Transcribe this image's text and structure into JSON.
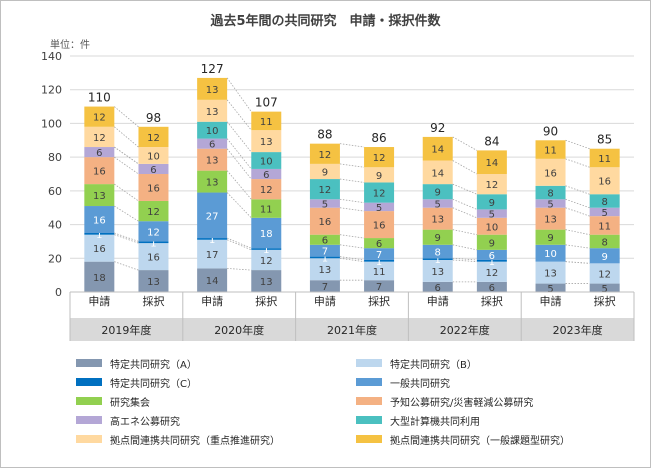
{
  "title": "過去5年間の共同研究　申請・採択件数",
  "unit": "単位：件",
  "colors": [
    "#8497b0",
    "#bdd7ee",
    "#0070c0",
    "#5b9bd5",
    "#92d050",
    "#f4b183",
    "#b4a7d6",
    "#4bc0c0",
    "#ffd9a0",
    "#f5c242"
  ],
  "chart_data": {
    "type": "bar",
    "stacked": true,
    "ylim": [
      0,
      140
    ],
    "yticks": [
      0,
      20,
      40,
      60,
      80,
      100,
      120,
      140
    ],
    "grid": true,
    "legend_position": "bottom",
    "years": [
      "2019年度",
      "2020年度",
      "2021年度",
      "2022年度",
      "2023年度"
    ],
    "subcategories": [
      "申請",
      "採択"
    ],
    "series": [
      {
        "name": "特定共同研究（A）",
        "values": [
          18,
          13,
          14,
          13,
          7,
          7,
          6,
          6,
          5,
          5
        ]
      },
      {
        "name": "特定共同研究（B）",
        "values": [
          16,
          16,
          17,
          12,
          13,
          11,
          13,
          12,
          13,
          12
        ]
      },
      {
        "name": "特定共同研究（C）",
        "values": [
          1,
          1,
          1,
          1,
          1,
          1,
          1,
          1,
          0,
          0
        ]
      },
      {
        "name": "一般共同研究",
        "values": [
          16,
          12,
          27,
          18,
          7,
          7,
          8,
          6,
          10,
          9
        ]
      },
      {
        "name": "研究集会",
        "values": [
          13,
          12,
          13,
          11,
          6,
          6,
          9,
          9,
          9,
          8
        ]
      },
      {
        "name": "予知公募研究/災害軽減公募研究",
        "values": [
          16,
          16,
          13,
          12,
          16,
          16,
          13,
          10,
          13,
          11
        ]
      },
      {
        "name": "高エネ公募研究",
        "values": [
          6,
          6,
          6,
          6,
          5,
          5,
          5,
          5,
          5,
          5
        ]
      },
      {
        "name": "大型計算機共同利用",
        "values": [
          0,
          0,
          10,
          10,
          12,
          12,
          9,
          9,
          8,
          8
        ]
      },
      {
        "name": "拠点間連携共同研究（重点推進研究）",
        "values": [
          12,
          10,
          13,
          13,
          9,
          9,
          14,
          12,
          16,
          16
        ]
      },
      {
        "name": "拠点間連携共同研究（一般課題型研究）",
        "values": [
          12,
          12,
          13,
          11,
          12,
          12,
          14,
          14,
          11,
          11
        ]
      }
    ],
    "totals": [
      110,
      98,
      127,
      107,
      88,
      86,
      92,
      84,
      90,
      85
    ]
  },
  "legend": {
    "items": [
      "特定共同研究（A）",
      "特定共同研究（B）",
      "特定共同研究（C）",
      "一般共同研究",
      "研究集会",
      "予知公募研究/災害軽減公募研究",
      "高エネ公募研究",
      "大型計算機共同利用",
      "拠点間連携共同研究（重点推進研究）",
      "拠点間連携共同研究（一般課題型研究）"
    ]
  }
}
